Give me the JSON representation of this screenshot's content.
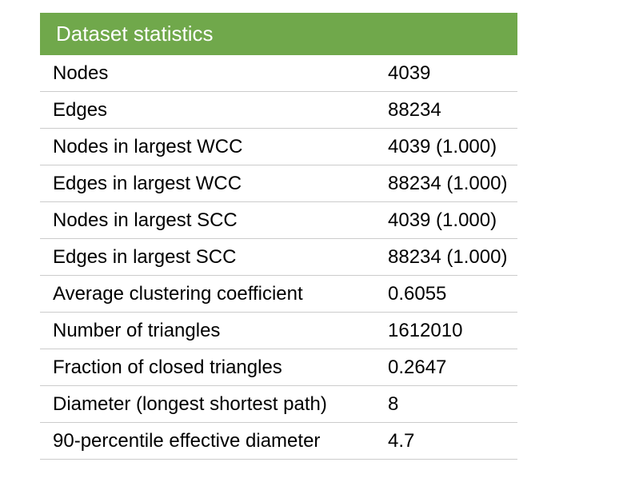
{
  "header": "Dataset statistics",
  "rows": [
    {
      "label": "Nodes",
      "value": "4039"
    },
    {
      "label": "Edges",
      "value": "88234"
    },
    {
      "label": "Nodes in largest WCC",
      "value": "4039 (1.000)"
    },
    {
      "label": "Edges in largest WCC",
      "value": "88234 (1.000)"
    },
    {
      "label": "Nodes in largest SCC",
      "value": "4039 (1.000)"
    },
    {
      "label": "Edges in largest SCC",
      "value": "88234 (1.000)"
    },
    {
      "label": "Average clustering coefficient",
      "value": "0.6055"
    },
    {
      "label": "Number of triangles",
      "value": "1612010"
    },
    {
      "label": "Fraction of closed triangles",
      "value": "0.2647"
    },
    {
      "label": "Diameter (longest shortest path)",
      "value": "8"
    },
    {
      "label": "90-percentile effective diameter",
      "value": "4.7"
    }
  ],
  "colors": {
    "header_bg": "#70a84b",
    "header_text": "#ffffff",
    "row_border": "#cccccc"
  }
}
